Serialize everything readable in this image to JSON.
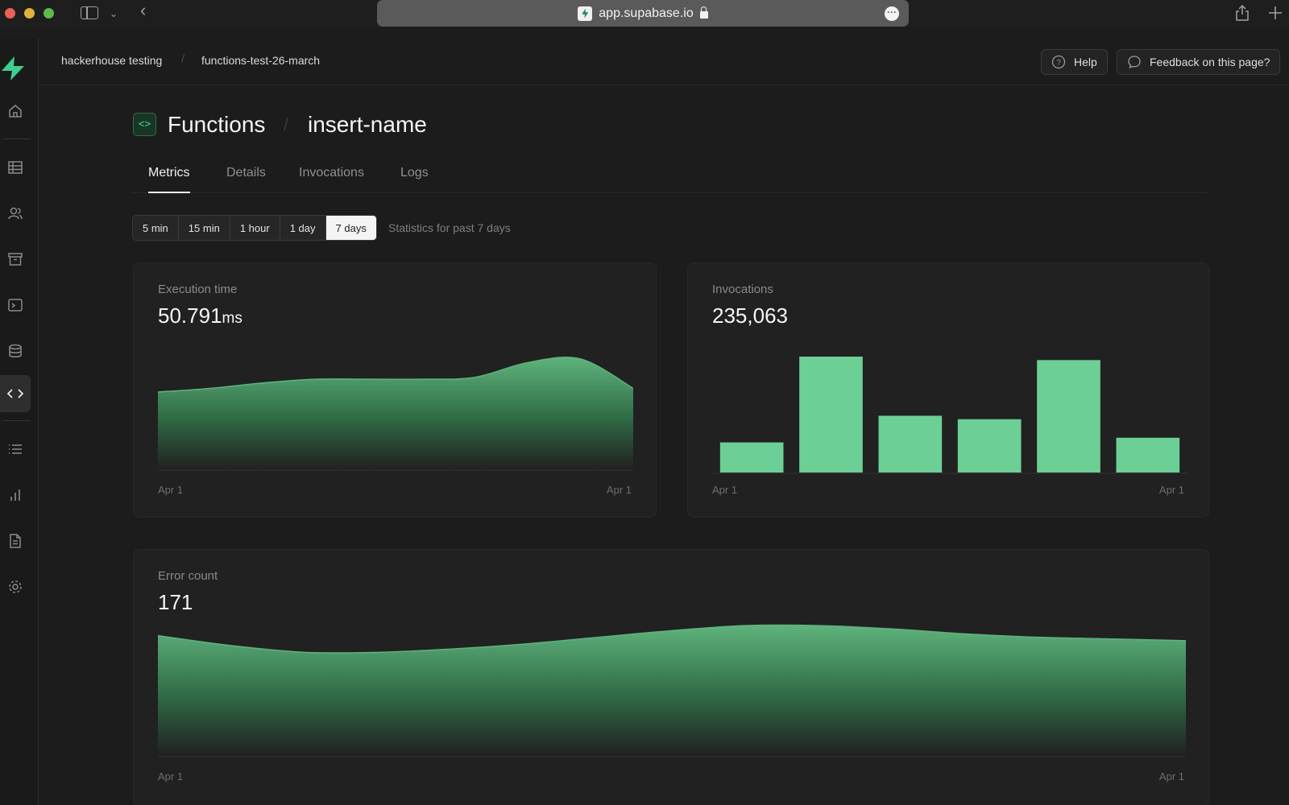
{
  "browser": {
    "url": "app.supabase.io"
  },
  "breadcrumb": {
    "org": "hackerhouse testing",
    "project": "functions-test-26-march",
    "separator": "/"
  },
  "header_actions": {
    "help_label": "Help",
    "feedback_label": "Feedback on this page?"
  },
  "page": {
    "icon_glyph": "<>",
    "title": "Functions",
    "separator": "/",
    "function_name": "insert-name"
  },
  "tabs": [
    {
      "label": "Metrics",
      "active": true
    },
    {
      "label": "Details",
      "active": false
    },
    {
      "label": "Invocations",
      "active": false
    },
    {
      "label": "Logs",
      "active": false
    }
  ],
  "time_range": {
    "options": [
      "5 min",
      "15 min",
      "1 hour",
      "1 day",
      "7 days"
    ],
    "selected": "7 days",
    "note": "Statistics for past 7 days"
  },
  "colors": {
    "accent": "#3ecf8e",
    "bar": "#6ccf95",
    "area_top": "#5fb37c",
    "background": "#1c1c1c"
  },
  "nav_icons": [
    "home-icon",
    "table-icon",
    "users-icon",
    "archive-icon",
    "terminal-icon",
    "database-icon",
    "code-icon",
    "list-icon",
    "bar-chart-icon",
    "document-icon",
    "gear-icon"
  ],
  "cards": {
    "execution_time": {
      "label": "Execution time",
      "value": "50.791",
      "unit": "ms",
      "x_start": "Apr 1",
      "x_end": "Apr 1"
    },
    "invocations": {
      "label": "Invocations",
      "value": "235,063",
      "x_start": "Apr 1",
      "x_end": "Apr 1"
    },
    "error_count": {
      "label": "Error count",
      "value": "171",
      "x_start": "Apr 1",
      "x_end": "Apr 1"
    }
  },
  "chart_data": [
    {
      "type": "area",
      "title": "Execution time",
      "values": [
        42,
        44,
        47,
        49,
        49,
        49,
        50,
        58,
        60,
        44
      ]
    },
    {
      "type": "bar",
      "title": "Invocations",
      "values": [
        26,
        100,
        49,
        46,
        97,
        30
      ]
    },
    {
      "type": "area",
      "title": "Error count",
      "values": [
        72,
        66,
        62,
        62,
        64,
        67,
        71,
        75,
        78,
        78,
        76,
        73,
        71,
        70,
        69
      ]
    }
  ]
}
